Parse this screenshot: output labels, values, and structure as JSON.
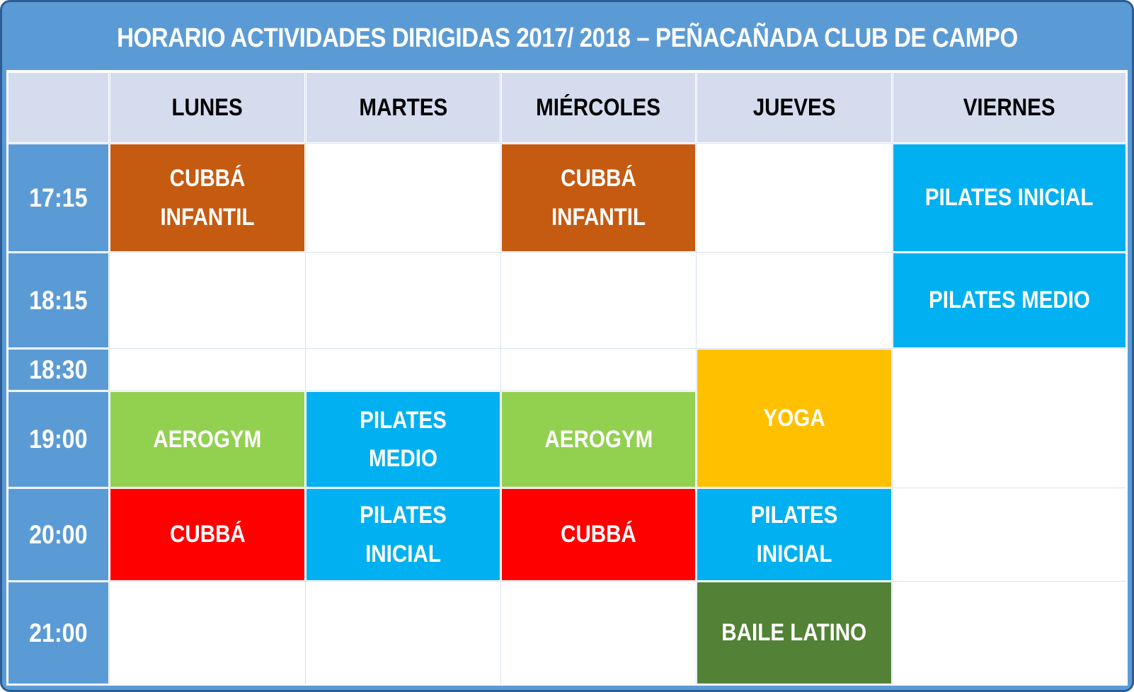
{
  "title": "HORARIO ACTIVIDADES DIRIGIDAS 2017/ 2018 – PEÑACAÑADA CLUB DE CAMPO",
  "days": [
    "LUNES",
    "MARTES",
    "MIÉRCOLES",
    "JUEVES",
    "VIERNES"
  ],
  "times": [
    "17:15",
    "18:15",
    "18:30",
    "19:00",
    "20:00",
    "21:00"
  ],
  "cells": [
    {
      "day": "LUNES",
      "time": "17:15",
      "label": "CUBBÁ INFANTIL",
      "color": "#C55A11"
    },
    {
      "day": "MIÉRCOLES",
      "time": "17:15",
      "label": "CUBBÁ INFANTIL",
      "color": "#C55A11"
    },
    {
      "day": "VIERNES",
      "time": "17:15",
      "label": "PILATES INICIAL",
      "color": "#00B0F0"
    },
    {
      "day": "VIERNES",
      "time": "18:15",
      "label": "PILATES MEDIO",
      "color": "#00B0F0"
    },
    {
      "day": "JUEVES",
      "time": "18:30",
      "label": "YOGA",
      "color": "#FFC000",
      "rowspan": 2
    },
    {
      "day": "LUNES",
      "time": "19:00",
      "label": "AEROGYM",
      "color": "#92D050"
    },
    {
      "day": "MARTES",
      "time": "19:00",
      "label": "PILATES MEDIO",
      "color": "#00B0F0"
    },
    {
      "day": "MIÉRCOLES",
      "time": "19:00",
      "label": "AEROGYM",
      "color": "#92D050"
    },
    {
      "day": "LUNES",
      "time": "20:00",
      "label": "CUBBÁ",
      "color": "#FF0000"
    },
    {
      "day": "MARTES",
      "time": "20:00",
      "label": "PILATES INICIAL",
      "color": "#00B0F0"
    },
    {
      "day": "MIÉRCOLES",
      "time": "20:00",
      "label": "CUBBÁ",
      "color": "#FF0000"
    },
    {
      "day": "JUEVES",
      "time": "20:00",
      "label": "PILATES INICIAL",
      "color": "#00B0F0"
    },
    {
      "day": "JUEVES",
      "time": "21:00",
      "label": "BAILE LATINO",
      "color": "#538135"
    }
  ],
  "colors": {
    "frame_blue": "#5B9BD5",
    "frame_outline": "#2E5C96",
    "header_row_bg": "#D4DCEE",
    "time_column_bg": "#5B9BD5",
    "cubba_infantil": "#C55A11",
    "pilates": "#00B0F0",
    "aerogym": "#92D050",
    "yoga": "#FFC000",
    "cubba": "#FF0000",
    "baile_latino": "#538135",
    "title_text": "#ffffff",
    "header_text": "#000000"
  }
}
